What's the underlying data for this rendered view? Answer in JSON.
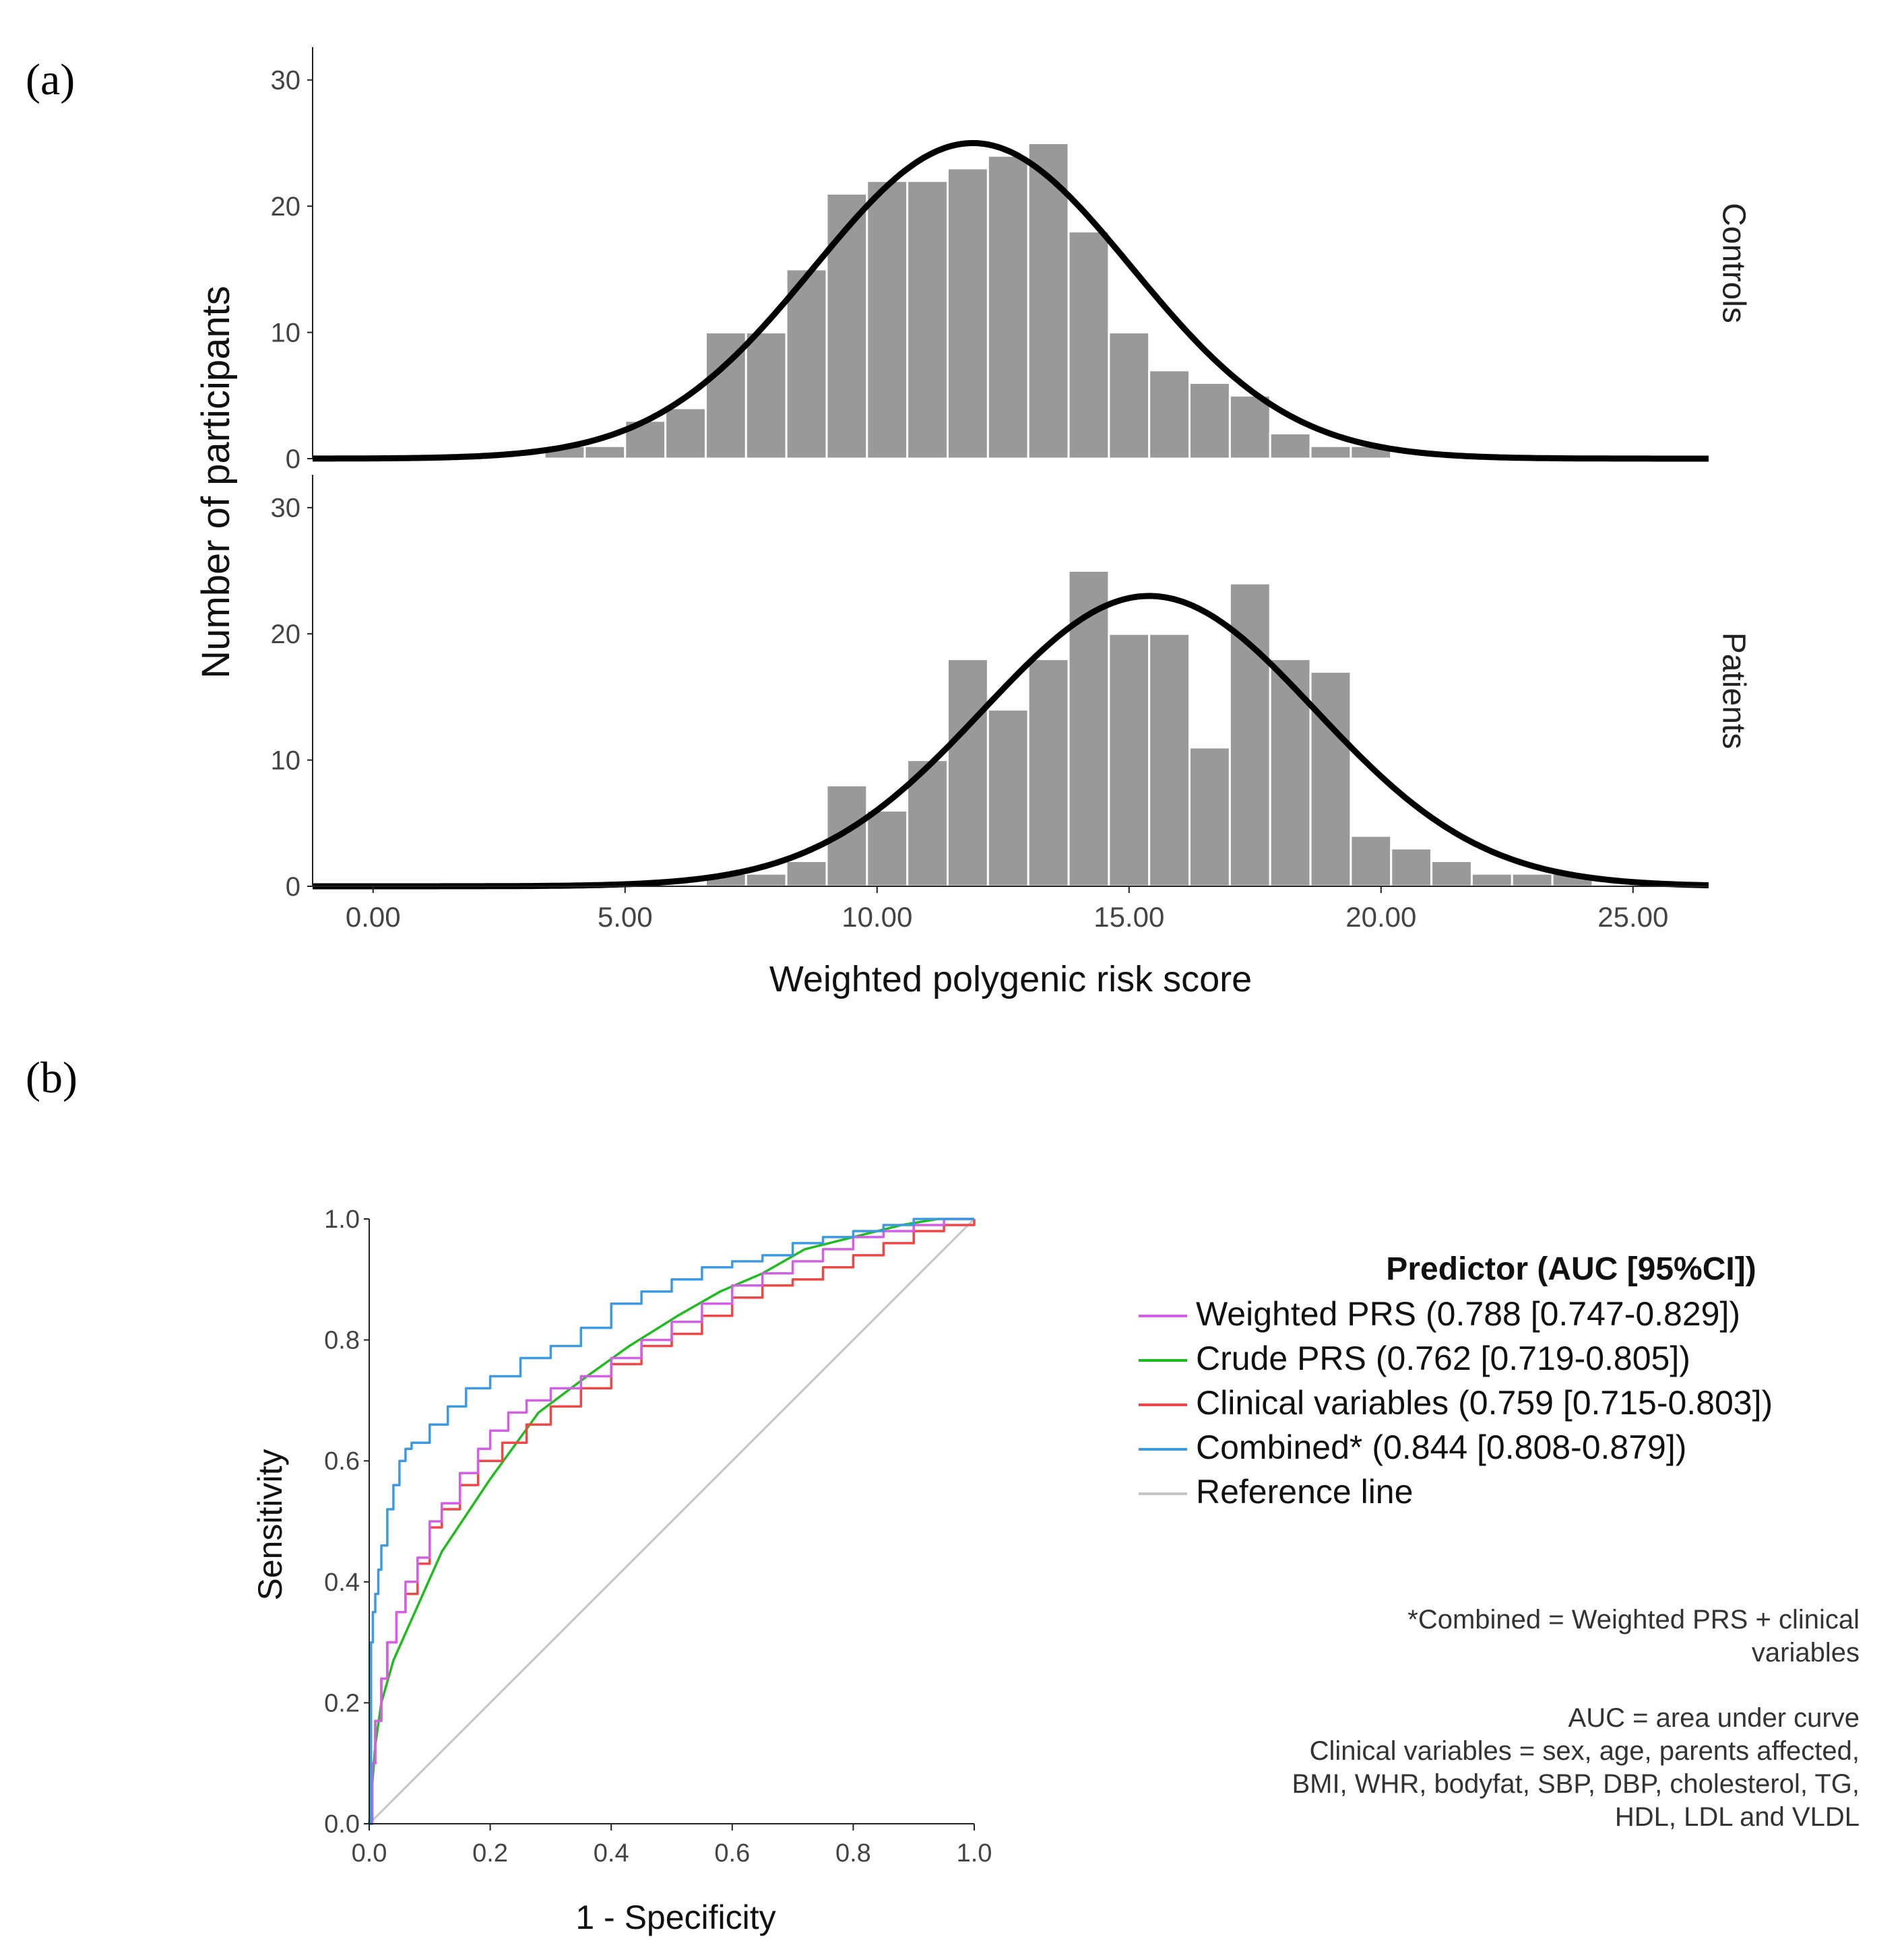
{
  "panel_labels": {
    "a": "(a)",
    "b": "(b)"
  },
  "colors": {
    "bar_fill": "#999999",
    "bar_stroke": "#ffffff",
    "curve": "#000000",
    "axis": "#222222",
    "weighted": "#d45fe6",
    "crude": "#1ebc1e",
    "clinical": "#f04646",
    "combined": "#3b9ae3",
    "reference": "#c6c6c6"
  },
  "chart_data": [
    {
      "type": "bar",
      "title": "",
      "xlabel": "Weighted polygenic risk score",
      "ylabel": "Number of participants",
      "xlim": [
        -1.2,
        26.5
      ],
      "ylim": [
        0,
        31
      ],
      "x_ticks": [
        0,
        5,
        10,
        15,
        20,
        25
      ],
      "x_tick_labels": [
        "0.00",
        "5.00",
        "10.00",
        "15.00",
        "20.00",
        "25.00"
      ],
      "y_ticks": [
        0,
        10,
        20,
        30
      ],
      "y_tick_labels": [
        "0",
        "10",
        "20",
        "30"
      ],
      "bin_width": 0.8,
      "facets": [
        {
          "name": "Controls",
          "bin_starts": [
            3.4,
            4.2,
            5.0,
            5.8,
            6.6,
            7.4,
            8.2,
            9.0,
            9.8,
            10.6,
            11.4,
            12.2,
            13.0,
            13.8,
            14.6,
            15.4,
            16.2,
            17.0,
            17.8,
            18.6,
            19.4,
            20.2
          ],
          "values": [
            1,
            1,
            3,
            4,
            10,
            10,
            15,
            21,
            22,
            22,
            23,
            24,
            25,
            18,
            10,
            7,
            6,
            5,
            2,
            1,
            1,
            0
          ],
          "normal_curve": {
            "mean": 11.9,
            "sd": 3.15,
            "peak": 25
          }
        },
        {
          "name": "Patients",
          "bin_starts": [
            6.6,
            7.4,
            8.2,
            9.0,
            9.8,
            10.6,
            11.4,
            12.2,
            13.0,
            13.8,
            14.6,
            15.4,
            16.2,
            17.0,
            17.8,
            18.6,
            19.4,
            20.2,
            21.0,
            21.8,
            22.6,
            23.4,
            24.2
          ],
          "values": [
            1,
            1,
            2,
            8,
            6,
            10,
            18,
            14,
            18,
            25,
            20,
            20,
            11,
            24,
            18,
            17,
            4,
            3,
            2,
            1,
            1,
            1,
            0
          ],
          "normal_curve": {
            "mean": 15.4,
            "sd": 3.3,
            "peak": 23
          }
        }
      ]
    },
    {
      "type": "line",
      "title": "",
      "xlabel": "1 - Specificity",
      "ylabel": "Sensitivity",
      "xlim": [
        0,
        1
      ],
      "ylim": [
        0,
        1
      ],
      "x_ticks": [
        0,
        0.2,
        0.4,
        0.6,
        0.8,
        1.0
      ],
      "x_tick_labels": [
        "0.0",
        "0.2",
        "0.4",
        "0.6",
        "0.8",
        "1.0"
      ],
      "y_ticks": [
        0,
        0.2,
        0.4,
        0.6,
        0.8,
        1.0
      ],
      "y_tick_labels": [
        "0.0",
        "0.2",
        "0.4",
        "0.6",
        "0.8",
        "1.0"
      ],
      "legend": {
        "title": "Predictor (AUC [95%CI])",
        "position": "right",
        "entries": [
          {
            "key": "weighted",
            "name": "Weighted PRS",
            "stat": "(0.788 [0.747-0.829])"
          },
          {
            "key": "crude",
            "name": "Crude PRS",
            "stat": "(0.762 [0.719-0.805])"
          },
          {
            "key": "clinical",
            "name": "Clinical variables",
            "stat": "(0.759 [0.715-0.803])"
          },
          {
            "key": "combined",
            "name": "Combined*",
            "stat": "(0.844 [0.808-0.879])"
          },
          {
            "key": "reference",
            "name": "Reference line",
            "stat": ""
          }
        ]
      },
      "notes": [
        [
          "*Combined = Weighted PRS + clinical",
          "variables"
        ],
        [
          "AUC = area under curve",
          "Clinical variables = sex, age, parents affected,",
          "BMI, WHR, bodyfat, SBP, DBP, cholesterol, TG,",
          "HDL, LDL and VLDL"
        ]
      ],
      "series": [
        {
          "key": "weighted",
          "name": "Weighted PRS",
          "x": [
            0,
            0.005,
            0.01,
            0.02,
            0.03,
            0.045,
            0.06,
            0.08,
            0.1,
            0.12,
            0.15,
            0.18,
            0.2,
            0.23,
            0.26,
            0.3,
            0.35,
            0.4,
            0.45,
            0.5,
            0.55,
            0.6,
            0.65,
            0.7,
            0.75,
            0.8,
            0.85,
            0.9,
            0.95,
            1.0
          ],
          "y": [
            0,
            0.1,
            0.17,
            0.24,
            0.3,
            0.35,
            0.4,
            0.44,
            0.5,
            0.53,
            0.58,
            0.62,
            0.65,
            0.68,
            0.7,
            0.72,
            0.74,
            0.77,
            0.8,
            0.83,
            0.86,
            0.89,
            0.91,
            0.93,
            0.95,
            0.97,
            0.98,
            0.99,
            1.0,
            1.0
          ]
        },
        {
          "key": "crude",
          "name": "Crude PRS",
          "x": [
            0,
            0.01,
            0.02,
            0.04,
            0.12,
            0.2,
            0.28,
            0.36,
            0.43,
            0.51,
            0.58,
            0.65,
            0.72,
            0.8,
            0.88,
            0.94,
            1.0
          ],
          "y": [
            0,
            0.13,
            0.2,
            0.27,
            0.45,
            0.57,
            0.68,
            0.74,
            0.79,
            0.84,
            0.88,
            0.91,
            0.95,
            0.97,
            0.99,
            1.0,
            1.0
          ]
        },
        {
          "key": "clinical",
          "name": "Clinical variables",
          "x": [
            0,
            0.005,
            0.01,
            0.02,
            0.03,
            0.045,
            0.06,
            0.08,
            0.1,
            0.12,
            0.15,
            0.18,
            0.22,
            0.26,
            0.3,
            0.35,
            0.4,
            0.45,
            0.5,
            0.55,
            0.6,
            0.65,
            0.7,
            0.75,
            0.8,
            0.85,
            0.9,
            0.95,
            1.0
          ],
          "y": [
            0,
            0.1,
            0.17,
            0.24,
            0.3,
            0.35,
            0.38,
            0.43,
            0.49,
            0.52,
            0.56,
            0.6,
            0.63,
            0.66,
            0.69,
            0.72,
            0.76,
            0.79,
            0.81,
            0.84,
            0.87,
            0.89,
            0.9,
            0.92,
            0.94,
            0.96,
            0.98,
            0.99,
            1.0
          ]
        },
        {
          "key": "combined",
          "name": "Combined*",
          "x": [
            0,
            0.003,
            0.006,
            0.01,
            0.015,
            0.02,
            0.03,
            0.04,
            0.05,
            0.06,
            0.07,
            0.1,
            0.13,
            0.16,
            0.2,
            0.25,
            0.3,
            0.35,
            0.4,
            0.45,
            0.5,
            0.55,
            0.6,
            0.65,
            0.7,
            0.75,
            0.8,
            0.85,
            0.9,
            0.95,
            1.0
          ],
          "y": [
            0,
            0.3,
            0.35,
            0.38,
            0.42,
            0.46,
            0.52,
            0.56,
            0.6,
            0.62,
            0.63,
            0.66,
            0.69,
            0.72,
            0.74,
            0.77,
            0.79,
            0.82,
            0.86,
            0.88,
            0.9,
            0.92,
            0.93,
            0.94,
            0.96,
            0.97,
            0.98,
            0.99,
            1.0,
            1.0,
            1.0
          ]
        },
        {
          "key": "reference",
          "name": "Reference line",
          "x": [
            0,
            1
          ],
          "y": [
            0,
            1
          ]
        }
      ]
    }
  ]
}
